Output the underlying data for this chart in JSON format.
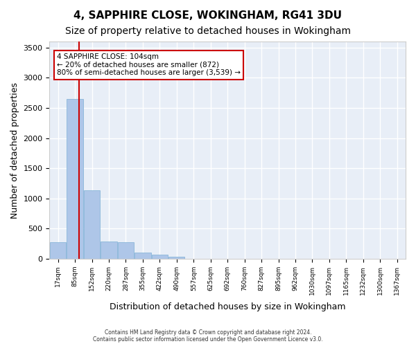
{
  "title": "4, SAPPHIRE CLOSE, WOKINGHAM, RG41 3DU",
  "subtitle": "Size of property relative to detached houses in Wokingham",
  "xlabel": "Distribution of detached houses by size in Wokingham",
  "ylabel": "Number of detached properties",
  "bin_labels": [
    "17sqm",
    "85sqm",
    "152sqm",
    "220sqm",
    "287sqm",
    "355sqm",
    "422sqm",
    "490sqm",
    "557sqm",
    "625sqm",
    "692sqm",
    "760sqm",
    "827sqm",
    "895sqm",
    "962sqm",
    "1030sqm",
    "1097sqm",
    "1165sqm",
    "1232sqm",
    "1300sqm",
    "1367sqm"
  ],
  "bar_values": [
    270,
    2650,
    1140,
    285,
    280,
    100,
    65,
    40,
    0,
    0,
    0,
    0,
    0,
    0,
    0,
    0,
    0,
    0,
    0,
    0,
    0
  ],
  "bar_color": "#aec6e8",
  "bar_edge_color": "#7bafd4",
  "property_line_x": 1.25,
  "annotation_text": "4 SAPPHIRE CLOSE: 104sqm\n← 20% of detached houses are smaller (872)\n80% of semi-detached houses are larger (3,539) →",
  "annotation_box_color": "#ffffff",
  "annotation_box_edgecolor": "#cc0000",
  "vline_color": "#cc0000",
  "ylim": [
    0,
    3600
  ],
  "yticks": [
    0,
    500,
    1000,
    1500,
    2000,
    2500,
    3000,
    3500
  ],
  "bg_color": "#e8eef7",
  "grid_color": "#ffffff",
  "footnote": "Contains HM Land Registry data © Crown copyright and database right 2024.\nContains public sector information licensed under the Open Government Licence v3.0.",
  "title_fontsize": 11,
  "subtitle_fontsize": 10,
  "xlabel_fontsize": 9,
  "ylabel_fontsize": 9
}
